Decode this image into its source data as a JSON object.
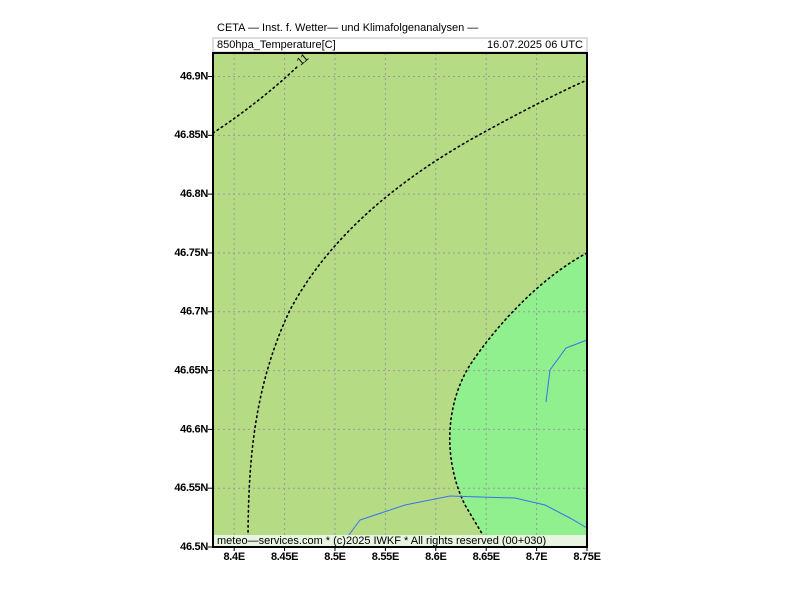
{
  "header": {
    "title": "CETA — Inst. f. Wetter— und Klimafolgenanalysen —",
    "parameter": "850hpa_Temperature[C]",
    "time": "16.07.2025 06 UTC"
  },
  "map": {
    "xlim": [
      8.379,
      8.75
    ],
    "ylim": [
      46.5,
      46.92
    ],
    "xticks": [
      {
        "value": 8.4,
        "label": "8.4E"
      },
      {
        "value": 8.45,
        "label": "8.45E"
      },
      {
        "value": 8.5,
        "label": "8.5E"
      },
      {
        "value": 8.55,
        "label": "8.55E"
      },
      {
        "value": 8.6,
        "label": "8.6E"
      },
      {
        "value": 8.65,
        "label": "8.65E"
      },
      {
        "value": 8.7,
        "label": "8.7E"
      },
      {
        "value": 8.75,
        "label": "8.75E"
      }
    ],
    "yticks": [
      {
        "value": 46.5,
        "label": "46.5N"
      },
      {
        "value": 46.55,
        "label": "46.55N"
      },
      {
        "value": 46.6,
        "label": "46.6N"
      },
      {
        "value": 46.65,
        "label": "46.65N"
      },
      {
        "value": 46.7,
        "label": "46.7N"
      },
      {
        "value": 46.75,
        "label": "46.75N"
      },
      {
        "value": 46.8,
        "label": "46.8N"
      },
      {
        "value": 46.85,
        "label": "46.85N"
      },
      {
        "value": 46.9,
        "label": "46.9N"
      }
    ],
    "grid": true,
    "contour_label": "11"
  },
  "footer": "meteo—services.com * (c)2025 IWKF * All rights reserved (00+030)"
}
